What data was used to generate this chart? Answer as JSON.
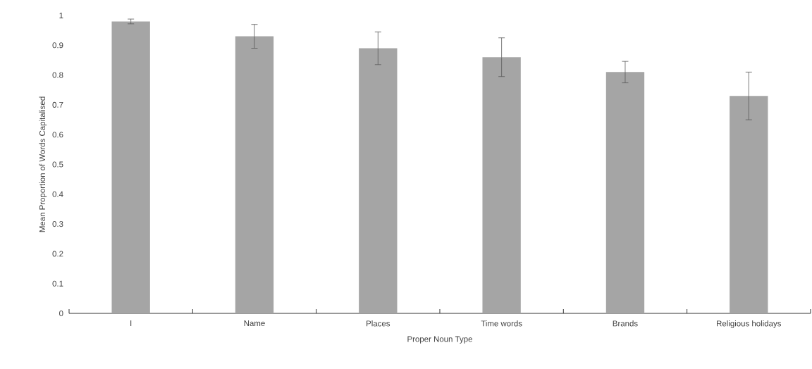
{
  "chart_data": {
    "type": "bar",
    "xlabel": "Proper Noun Type",
    "ylabel": "Mean Proportion of Words Capitalised",
    "categories": [
      "I",
      "Name",
      "Places",
      "Time words",
      "Brands",
      "Religious holidays"
    ],
    "values": [
      0.98,
      0.93,
      0.89,
      0.86,
      0.81,
      0.73
    ],
    "errors": [
      0.008,
      0.04,
      0.055,
      0.065,
      0.036,
      0.08
    ],
    "color": "#a5a5a5",
    "ylim": [
      0,
      1
    ],
    "yticks": [
      0,
      0.1,
      0.2,
      0.3,
      0.4,
      0.5,
      0.6,
      0.7,
      0.8,
      0.9,
      1
    ]
  }
}
